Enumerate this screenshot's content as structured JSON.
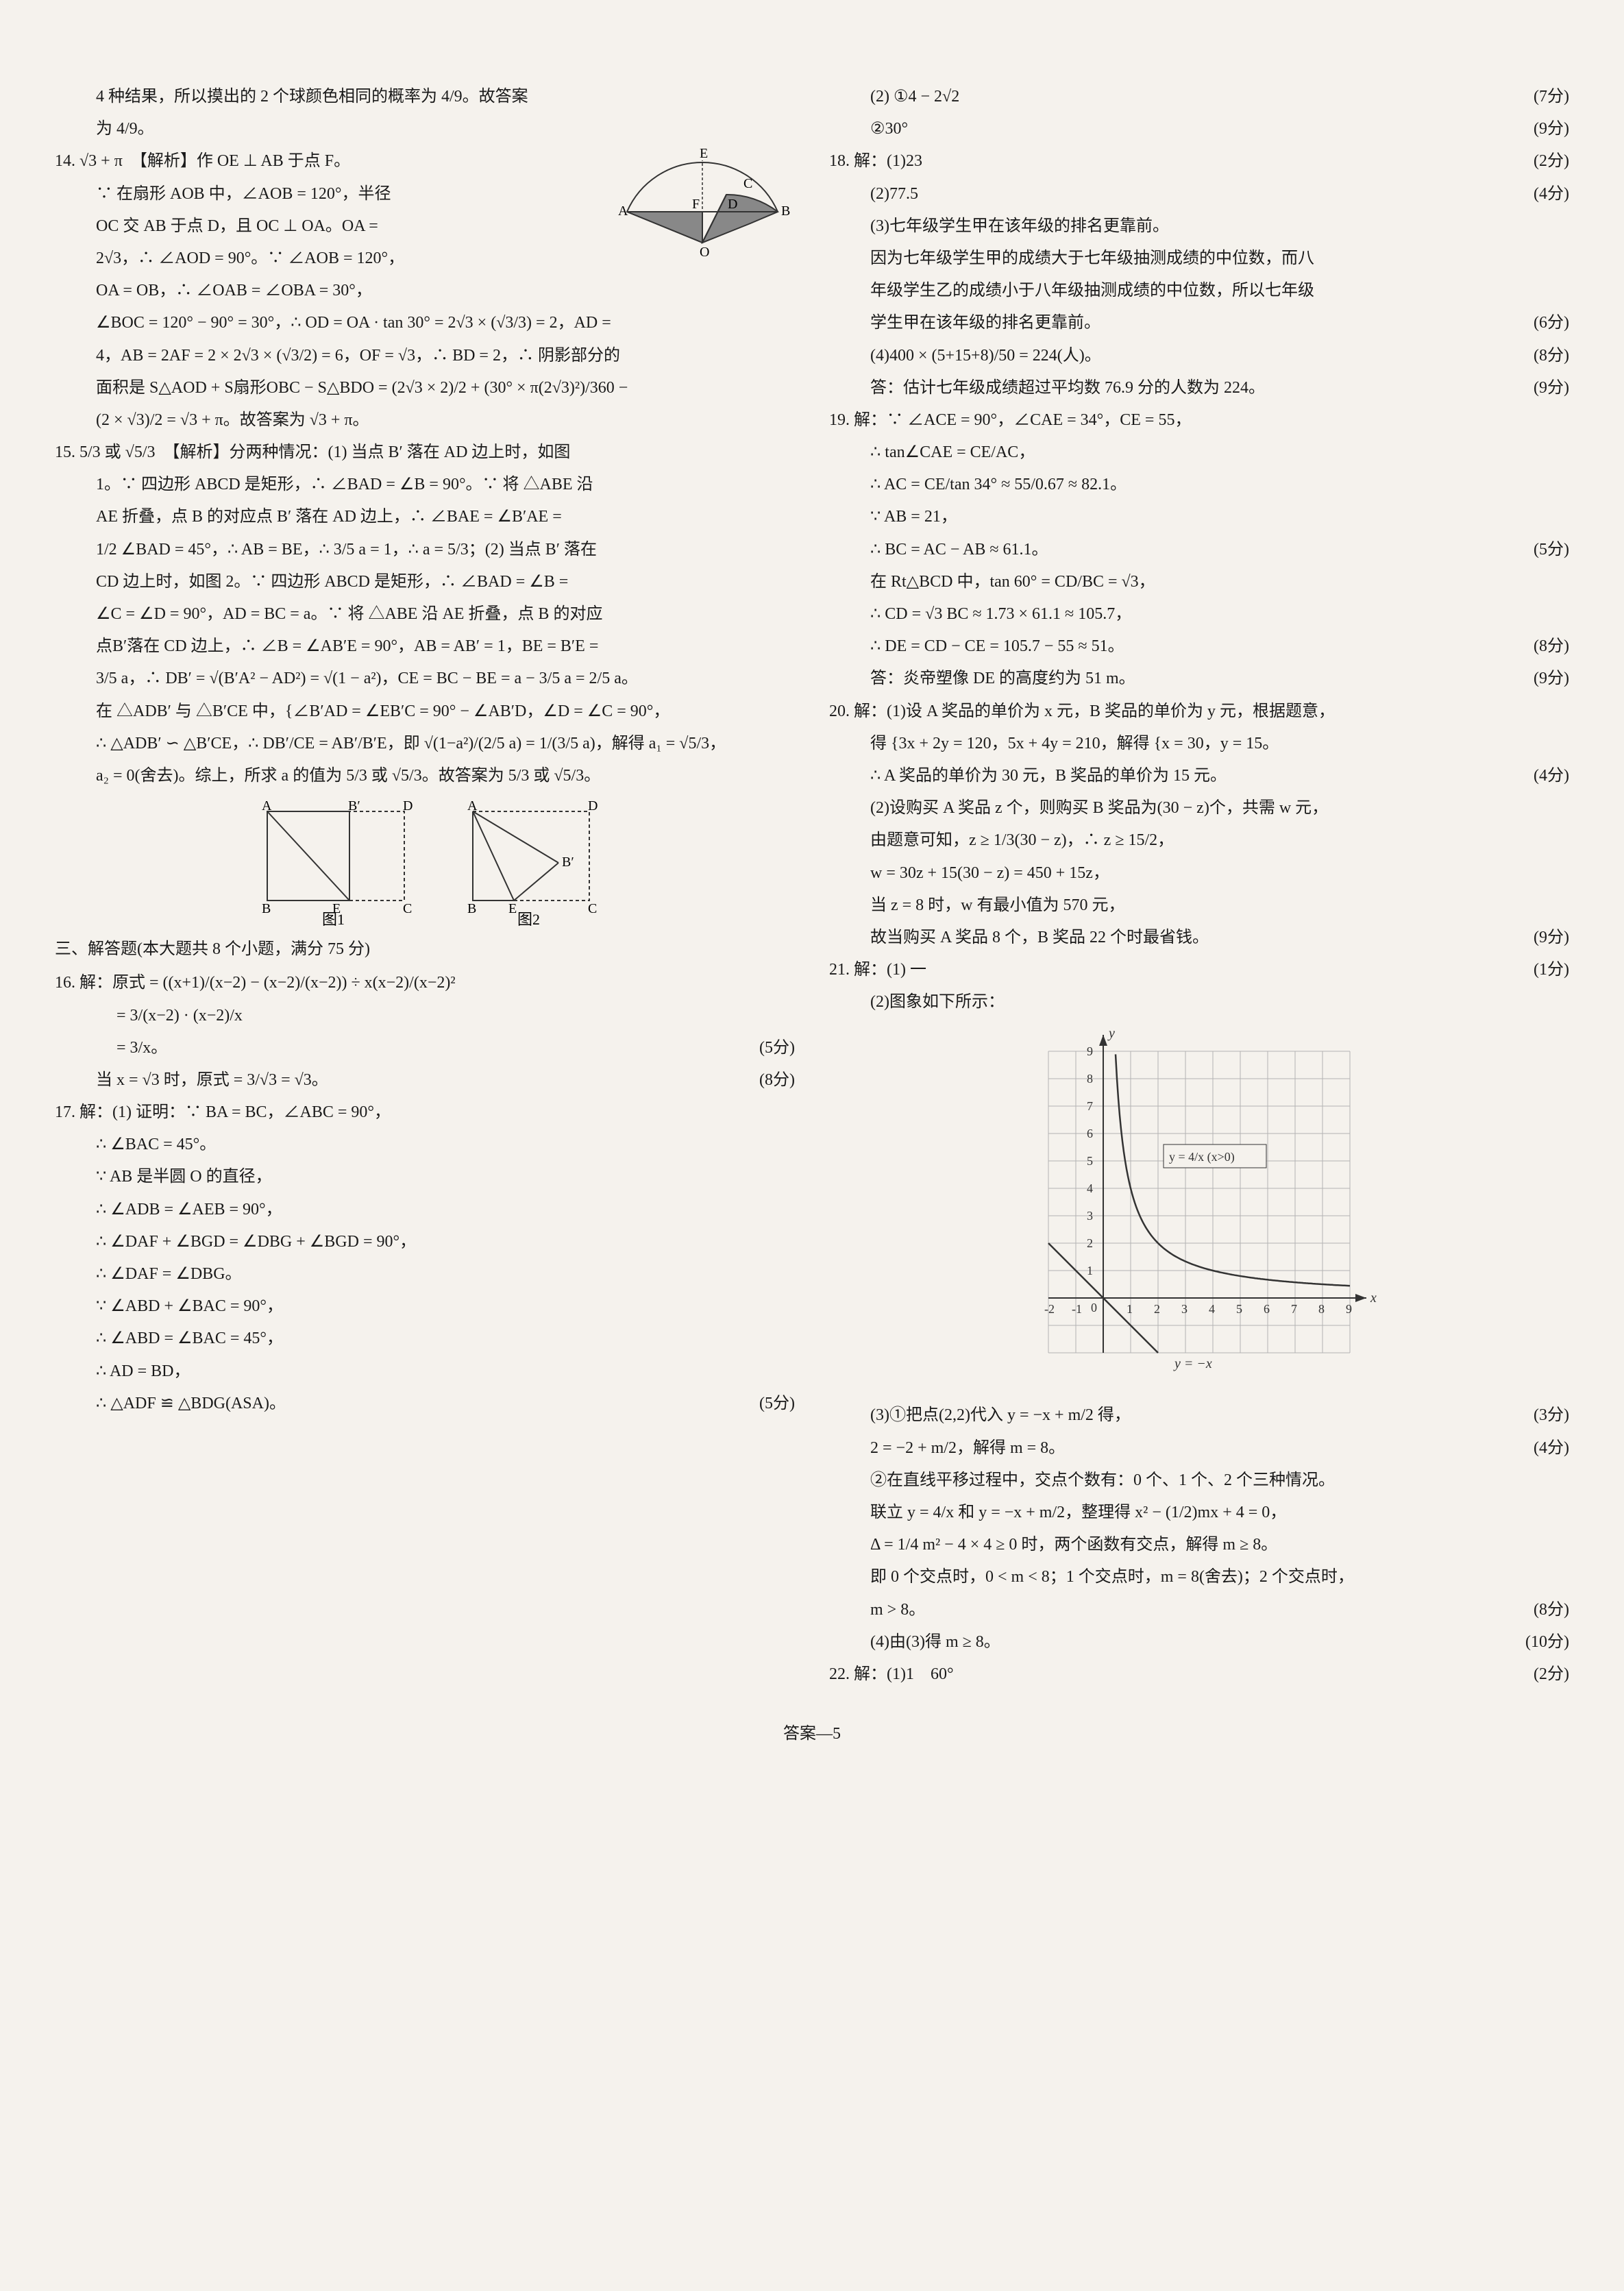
{
  "footer": "答案—5",
  "left": {
    "l1": "4 种结果，所以摸出的 2 个球颜色相同的概率为 4/9。故答案",
    "l2": "为 4/9。",
    "q14": {
      "head": "14. √3 + π　【解析】作 OE ⊥ AB 于点 F。",
      "a": "∵ 在扇形 AOB 中，∠AOB = 120°，半径",
      "b": "OC 交 AB 于点 D，且 OC ⊥ OA。OA =",
      "c": "2√3，∴ ∠AOD = 90°。∵ ∠AOB = 120°，",
      "d": "OA = OB，∴ ∠OAB = ∠OBA = 30°，",
      "e": "∠BOC = 120° − 90° = 30°，∴ OD = OA · tan 30° = 2√3 × (√3/3) = 2，AD =",
      "f": "4，AB = 2AF = 2 × 2√3 × (√3/2) = 6，OF = √3，∴ BD = 2，∴ 阴影部分的",
      "g": "面积是 S△AOD + S扇形OBC − S△BDO = (2√3 × 2)/2 + (30° × π(2√3)²)/360 −",
      "h": "(2 × √3)/2 = √3 + π。故答案为 √3 + π。"
    },
    "q15": {
      "head": "15. 5/3 或 √5/3　【解析】分两种情况：(1) 当点 B′ 落在 AD 边上时，如图",
      "a": "1。∵ 四边形 ABCD 是矩形，∴ ∠BAD = ∠B = 90°。∵ 将 △ABE 沿",
      "b": "AE 折叠，点 B 的对应点 B′ 落在 AD 边上，∴ ∠BAE = ∠B′AE =",
      "c": "1/2 ∠BAD = 45°，∴ AB = BE，∴ 3/5 a = 1，∴ a = 5/3；(2) 当点 B′ 落在",
      "d": "CD 边上时，如图 2。∵ 四边形 ABCD 是矩形，∴ ∠BAD = ∠B =",
      "e": "∠C = ∠D = 90°，AD = BC = a。∵ 将 △ABE 沿 AE 折叠，点 B 的对应",
      "f": "点B′落在 CD 边上，∴ ∠B = ∠AB′E = 90°，AB = AB′ = 1，BE = B′E =",
      "g": "3/5 a，∴ DB′ = √(B′A² − AD²) = √(1 − a²)，CE = BC − BE = a − 3/5 a = 2/5 a。",
      "h": "在 △ADB′ 与 △B′CE 中，{∠B′AD = ∠EB′C = 90° − ∠AB′D，∠D = ∠C = 90°，",
      "i": "∴ △ADB′ ∽ △B′CE，∴ DB′/CE = AB′/B′E，即 √(1−a²)/(2/5 a) = 1/(3/5 a)，解得 a₁ = √5/3，",
      "j": "a₂ = 0(舍去)。综上，所求 a 的值为 5/3 或 √5/3。故答案为 5/3 或 √5/3。",
      "fig1": "图1",
      "fig2": "图2"
    },
    "section3": "三、解答题(本大题共 8 个小题，满分 75 分)",
    "q16": {
      "head": "16. 解：原式 = ((x+1)/(x−2) − (x−2)/(x−2)) ÷ x(x−2)/(x−2)²",
      "a": "= 3/(x−2) · (x−2)/x",
      "b": "= 3/x。",
      "s1": "(5分)",
      "c": "当 x = √3 时，原式 = 3/√3 = √3。",
      "s2": "(8分)"
    },
    "q17": {
      "head": "17. 解：(1) 证明：∵ BA = BC，∠ABC = 90°，",
      "a": "∴ ∠BAC = 45°。",
      "b": "∵ AB 是半圆 O 的直径，",
      "c": "∴ ∠ADB = ∠AEB = 90°，",
      "d": "∴ ∠DAF + ∠BGD = ∠DBG + ∠BGD = 90°，",
      "e": "∴ ∠DAF = ∠DBG。",
      "f": "∵ ∠ABD + ∠BAC = 90°，",
      "g": "∴ ∠ABD = ∠BAC = 45°，",
      "h": "∴ AD = BD，",
      "i": "∴ △ADF ≌ △BDG(ASA)。",
      "s1": "(5分)"
    }
  },
  "right": {
    "q17b": {
      "a": "(2) ①4 − 2√2",
      "s1": "(7分)",
      "b": "②30°",
      "s2": "(9分)"
    },
    "q18": {
      "head": "18. 解：(1)23",
      "s1": "(2分)",
      "a": "(2)77.5",
      "s2": "(4分)",
      "b": "(3)七年级学生甲在该年级的排名更靠前。",
      "c": "因为七年级学生甲的成绩大于七年级抽测成绩的中位数，而八",
      "d": "年级学生乙的成绩小于八年级抽测成绩的中位数，所以七年级",
      "e": "学生甲在该年级的排名更靠前。",
      "s3": "(6分)",
      "f": "(4)400 × (5+15+8)/50 = 224(人)。",
      "s4": "(8分)",
      "g": "答：估计七年级成绩超过平均数 76.9 分的人数为 224。",
      "s5": "(9分)"
    },
    "q19": {
      "head": "19. 解：∵ ∠ACE = 90°，∠CAE = 34°，CE = 55，",
      "a": "∴ tan∠CAE = CE/AC，",
      "b": "∴ AC = CE/tan 34° ≈ 55/0.67 ≈ 82.1。",
      "c": "∵ AB = 21，",
      "d": "∴ BC = AC − AB ≈ 61.1。",
      "s1": "(5分)",
      "e": "在 Rt△BCD 中，tan 60° = CD/BC = √3，",
      "f": "∴ CD = √3 BC ≈ 1.73 × 61.1 ≈ 105.7，",
      "g": "∴ DE = CD − CE = 105.7 − 55 ≈ 51。",
      "s2": "(8分)",
      "h": "答：炎帝塑像 DE 的高度约为 51 m。",
      "s3": "(9分)"
    },
    "q20": {
      "head": "20. 解：(1)设 A 奖品的单价为 x 元，B 奖品的单价为 y 元，根据题意，",
      "a": "得 {3x + 2y = 120，5x + 4y = 210，解得 {x = 30，y = 15。",
      "b": "∴ A 奖品的单价为 30 元，B 奖品的单价为 15 元。",
      "s1": "(4分)",
      "c": "(2)设购买 A 奖品 z 个，则购买 B 奖品为(30 − z)个，共需 w 元，",
      "d": "由题意可知，z ≥ 1/3(30 − z)，∴ z ≥ 15/2，",
      "e": "w = 30z + 15(30 − z) = 450 + 15z，",
      "f": "当 z = 8 时，w 有最小值为 570 元，",
      "g": "故当购买 A 奖品 8 个，B 奖品 22 个时最省钱。",
      "s2": "(9分)"
    },
    "q21": {
      "head": "21. 解：(1) 一",
      "s1": "(1分)",
      "a": "(2)图象如下所示：",
      "s2": "(3分)",
      "b": "(3)①把点(2,2)代入 y = −x + m/2 得，",
      "c": "2 = −2 + m/2，解得 m = 8。",
      "s3": "(4分)",
      "d": "②在直线平移过程中，交点个数有：0 个、1 个、2 个三种情况。",
      "e": "联立 y = 4/x 和 y = −x + m/2，整理得 x² − (1/2)mx + 4 = 0，",
      "f": "Δ = 1/4 m² − 4 × 4 ≥ 0 时，两个函数有交点，解得 m ≥ 8。",
      "g": "即 0 个交点时，0 < m < 8；1 个交点时，m = 8(舍去)；2 个交点时，",
      "h": "m > 8。",
      "s4": "(8分)",
      "i": "(4)由(3)得 m ≥ 8。",
      "s5": "(10分)"
    },
    "q22": {
      "head": "22. 解：(1)1　60°",
      "s1": "(2分)"
    },
    "graph": {
      "y_vals": [
        9,
        8,
        7,
        6,
        5,
        4,
        3,
        2,
        1
      ],
      "x_vals": [
        -2,
        -1,
        0,
        1,
        2,
        3,
        4,
        5,
        6,
        7,
        8,
        9
      ],
      "curve_label": "y = 4/x (x>0)",
      "line_label": "y = −x",
      "colors": {
        "grid": "#b3b3b3",
        "axis": "#333333",
        "curve": "#333333"
      }
    }
  }
}
